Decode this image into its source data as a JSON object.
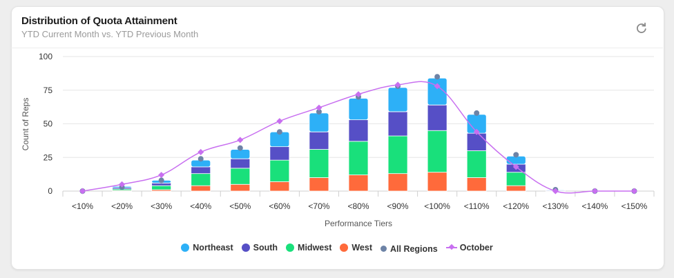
{
  "header": {
    "title": "Distribution of Quota Attainment",
    "subtitle": "YTD Current Month vs. YTD Previous Month",
    "reset_icon": "refresh-icon"
  },
  "colors": {
    "Northeast": "#2db0f7",
    "South": "#564fc6",
    "Midwest": "#19e07b",
    "West": "#ff6a3b",
    "All Regions": "#6d83a6",
    "October": "#c86ff0"
  },
  "chart_data": {
    "type": "bar",
    "stacked": true,
    "categories": [
      "<10%",
      "<20%",
      "<30%",
      "<40%",
      "<50%",
      "<60%",
      "<70%",
      "<80%",
      "<90%",
      "<100%",
      "<110%",
      "<120%",
      "<130%",
      "<140%",
      "<150%"
    ],
    "xlabel": "Performance Tiers",
    "ylabel": "Count of Reps",
    "ylim": [
      0,
      100
    ],
    "yticks": [
      0,
      25,
      50,
      75,
      100
    ],
    "grid": true,
    "legend_position": "bottom-center",
    "series": [
      {
        "name": "West",
        "type": "bar",
        "values": [
          0,
          0.5,
          1,
          4,
          5,
          7,
          10,
          12,
          13,
          14,
          10,
          4,
          0,
          0,
          0
        ]
      },
      {
        "name": "Midwest",
        "type": "bar",
        "values": [
          0,
          1,
          3,
          9,
          12,
          16,
          21,
          25,
          28,
          31,
          20,
          10,
          0,
          0,
          0
        ]
      },
      {
        "name": "South",
        "type": "bar",
        "values": [
          0,
          1,
          2,
          5,
          7,
          10,
          13,
          16,
          18,
          19,
          13,
          6,
          0.5,
          0,
          0
        ]
      },
      {
        "name": "Northeast",
        "type": "bar",
        "values": [
          0,
          1,
          2,
          5,
          7,
          11,
          14,
          16,
          18,
          20,
          14,
          6,
          0.5,
          0,
          0
        ]
      },
      {
        "name": "All Regions",
        "type": "scatter",
        "values": [
          0,
          3,
          8,
          24,
          32,
          44,
          59,
          70,
          78,
          85,
          58,
          27,
          1,
          0,
          0
        ]
      },
      {
        "name": "October",
        "type": "line",
        "values": [
          0,
          5,
          12,
          29,
          38,
          52,
          62,
          72,
          79,
          78,
          44,
          18,
          0,
          0,
          0
        ]
      }
    ],
    "legend": [
      "Northeast",
      "South",
      "Midwest",
      "West",
      "All Regions",
      "October"
    ]
  }
}
